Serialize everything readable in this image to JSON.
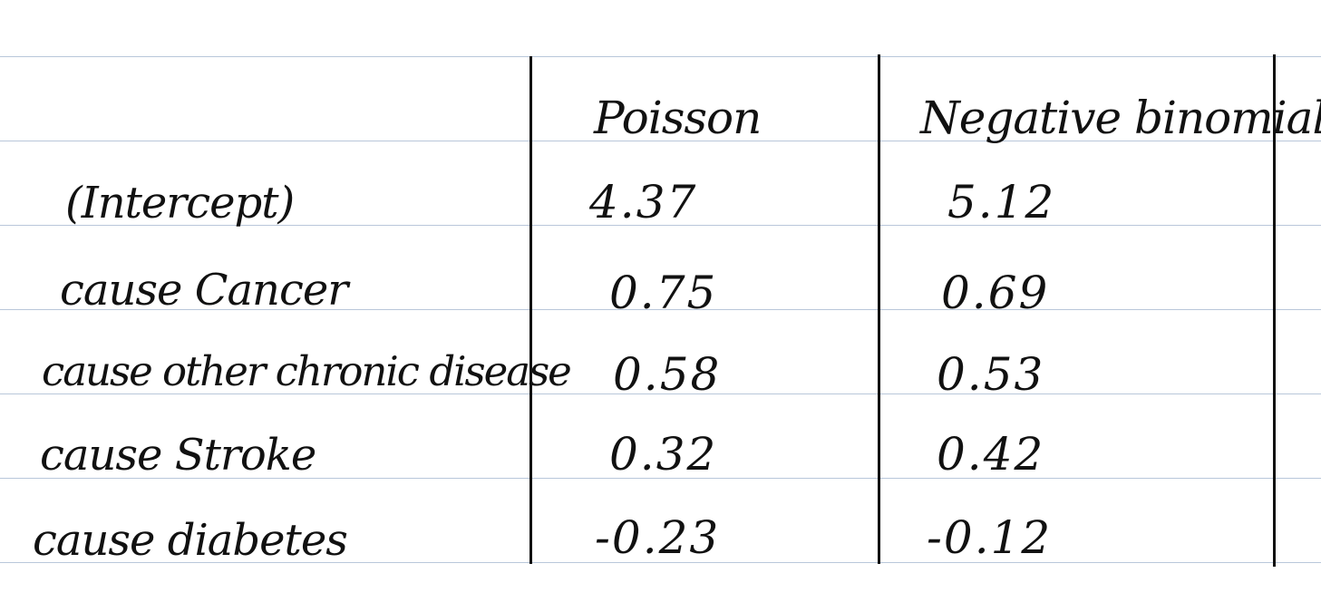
{
  "table": {
    "columns": [
      "Poisson",
      "Negative binomial"
    ],
    "rows": [
      {
        "label": "(Intercept)",
        "poisson": "4.37",
        "negative_binomial": "5.12"
      },
      {
        "label": "cause Cancer",
        "poisson": "0.75",
        "negative_binomial": "0.69"
      },
      {
        "label": "cause other chronic disease",
        "poisson": "0.58",
        "negative_binomial": "0.53"
      },
      {
        "label": "cause Stroke",
        "poisson": "0.32",
        "negative_binomial": "0.42"
      },
      {
        "label": "cause diabetes",
        "poisson": "-0.23",
        "negative_binomial": "-0.12"
      }
    ]
  },
  "colors": {
    "ruled_line": "#b9c7da",
    "ink": "#111111",
    "paper": "#ffffff"
  }
}
